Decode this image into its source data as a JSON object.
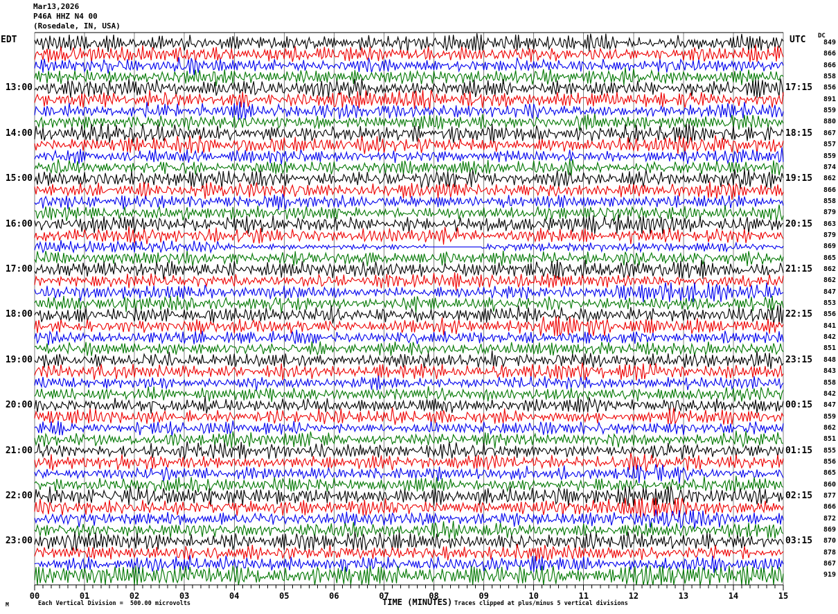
{
  "header": {
    "date_line": "Mar13,2026",
    "station_line": "P46A HHZ N4 00",
    "location_line": "(Rosedale, IN, USA)",
    "left_tz": "EDT",
    "right_tz": "UTC",
    "dc_label": "DC"
  },
  "footer": {
    "corner_mark": "M",
    "left_note": "Each Vertical Division =  500.00 microvolts",
    "axis_label": "TIME (MINUTES)",
    "right_note": "Traces clipped at plus/minus 5 vertical divisions"
  },
  "x_axis": {
    "ticks": [
      "00",
      "01",
      "02",
      "03",
      "04",
      "05",
      "06",
      "07",
      "08",
      "09",
      "10",
      "11",
      "12",
      "13",
      "14",
      "15"
    ],
    "minor_per_major": 5
  },
  "chart_data": {
    "type": "line",
    "title": "P46A HHZ N4 00 (Rosedale, IN, USA) heliplot seismogram Mar13,2026",
    "xlabel": "TIME (MINUTES)",
    "x_range": [
      0,
      15
    ],
    "minutes_per_row": 15,
    "rows": 48,
    "vertical_division_microvolts": 500.0,
    "clip_divisions": 5,
    "grid": true,
    "grid_color": "#808080",
    "trace_colors": {
      "black": "#000000",
      "red": "#ee0000",
      "blue": "#0000ee",
      "green": "#007700"
    },
    "traces": [
      {
        "edt": "",
        "utc": "",
        "color": "black",
        "dc": 849,
        "amp": 5.0
      },
      {
        "edt": "",
        "utc": "",
        "color": "red",
        "dc": 866,
        "amp": 5.0,
        "events": [
          [
            14.6,
            0.3,
            1.9
          ]
        ]
      },
      {
        "edt": "",
        "utc": "",
        "color": "blue",
        "dc": 866,
        "amp": 4.4,
        "events": [
          [
            9.7,
            0.15,
            1.9
          ]
        ]
      },
      {
        "edt": "",
        "utc": "",
        "color": "green",
        "dc": 858,
        "amp": 4.5
      },
      {
        "edt": "13:00",
        "utc": "17:15",
        "color": "black",
        "dc": 856,
        "amp": 5.4
      },
      {
        "edt": "",
        "utc": "",
        "color": "red",
        "dc": 891,
        "amp": 5.0,
        "events": [
          [
            6.1,
            0.12,
            2.7
          ],
          [
            7.98,
            0.07,
            2.2
          ]
        ]
      },
      {
        "edt": "",
        "utc": "",
        "color": "blue",
        "dc": 859,
        "amp": 4.4
      },
      {
        "edt": "",
        "utc": "",
        "color": "green",
        "dc": 880,
        "amp": 4.5
      },
      {
        "edt": "14:00",
        "utc": "18:15",
        "color": "black",
        "dc": 867,
        "amp": 5.6,
        "events": [
          [
            12.9,
            0.3,
            1.6
          ]
        ]
      },
      {
        "edt": "",
        "utc": "",
        "color": "red",
        "dc": 857,
        "amp": 5.0,
        "events": [
          [
            13.8,
            1.0,
            1.6
          ]
        ]
      },
      {
        "edt": "",
        "utc": "",
        "color": "blue",
        "dc": 859,
        "amp": 4.4
      },
      {
        "edt": "",
        "utc": "",
        "color": "green",
        "dc": 874,
        "amp": 4.5
      },
      {
        "edt": "15:00",
        "utc": "19:15",
        "color": "black",
        "dc": 862,
        "amp": 5.2,
        "events": [
          [
            14.2,
            0.4,
            1.6
          ]
        ]
      },
      {
        "edt": "",
        "utc": "",
        "color": "red",
        "dc": 866,
        "amp": 4.8
      },
      {
        "edt": "",
        "utc": "",
        "color": "blue",
        "dc": 858,
        "amp": 4.2
      },
      {
        "edt": "",
        "utc": "",
        "color": "green",
        "dc": 879,
        "amp": 4.5
      },
      {
        "edt": "16:00",
        "utc": "20:15",
        "color": "black",
        "dc": 863,
        "amp": 5.2
      },
      {
        "edt": "",
        "utc": "",
        "color": "red",
        "dc": 879,
        "amp": 4.8
      },
      {
        "edt": "",
        "utc": "",
        "color": "blue",
        "dc": 869,
        "amp": 4.2,
        "quiet": [
          [
            3.9,
            7.87,
            0.45
          ],
          [
            8.95,
            15,
            0.65
          ]
        ],
        "flat": [
          [
            7.87,
            8.95
          ]
        ]
      },
      {
        "edt": "",
        "utc": "",
        "color": "green",
        "dc": 865,
        "amp": 4.5
      },
      {
        "edt": "17:00",
        "utc": "21:15",
        "color": "black",
        "dc": 862,
        "amp": 5.2
      },
      {
        "edt": "",
        "utc": "",
        "color": "red",
        "dc": 862,
        "amp": 4.8
      },
      {
        "edt": "",
        "utc": "",
        "color": "blue",
        "dc": 847,
        "amp": 4.2,
        "events": [
          [
            13.2,
            1.2,
            1.9
          ]
        ]
      },
      {
        "edt": "",
        "utc": "",
        "color": "green",
        "dc": 853,
        "amp": 4.5
      },
      {
        "edt": "18:00",
        "utc": "22:15",
        "color": "black",
        "dc": 856,
        "amp": 5.2
      },
      {
        "edt": "",
        "utc": "",
        "color": "red",
        "dc": 841,
        "amp": 4.8,
        "events": [
          [
            10.4,
            0.3,
            2.1
          ],
          [
            11.38,
            0.15,
            1.8
          ]
        ]
      },
      {
        "edt": "",
        "utc": "",
        "color": "blue",
        "dc": 842,
        "amp": 4.2,
        "events": [
          [
            5.25,
            0.07,
            2.3
          ]
        ]
      },
      {
        "edt": "",
        "utc": "",
        "color": "green",
        "dc": 851,
        "amp": 4.5
      },
      {
        "edt": "19:00",
        "utc": "23:15",
        "color": "black",
        "dc": 848,
        "amp": 5.0
      },
      {
        "edt": "",
        "utc": "",
        "color": "red",
        "dc": 843,
        "amp": 4.8
      },
      {
        "edt": "",
        "utc": "",
        "color": "blue",
        "dc": 858,
        "amp": 4.2
      },
      {
        "edt": "",
        "utc": "",
        "color": "green",
        "dc": 842,
        "amp": 4.5
      },
      {
        "edt": "20:00",
        "utc": "00:15",
        "color": "black",
        "dc": 847,
        "amp": 5.0
      },
      {
        "edt": "",
        "utc": "",
        "color": "red",
        "dc": 859,
        "amp": 4.8
      },
      {
        "edt": "",
        "utc": "",
        "color": "blue",
        "dc": 862,
        "amp": 4.2
      },
      {
        "edt": "",
        "utc": "",
        "color": "green",
        "dc": 851,
        "amp": 4.5
      },
      {
        "edt": "21:00",
        "utc": "01:15",
        "color": "black",
        "dc": 855,
        "amp": 5.2
      },
      {
        "edt": "",
        "utc": "",
        "color": "red",
        "dc": 856,
        "amp": 4.8
      },
      {
        "edt": "",
        "utc": "",
        "color": "blue",
        "dc": 865,
        "amp": 4.4,
        "events": [
          [
            12.4,
            0.8,
            1.6
          ]
        ]
      },
      {
        "edt": "",
        "utc": "",
        "color": "green",
        "dc": 860,
        "amp": 4.5
      },
      {
        "edt": "22:00",
        "utc": "02:15",
        "color": "black",
        "dc": 877,
        "amp": 6.0
      },
      {
        "edt": "",
        "utc": "",
        "color": "red",
        "dc": 866,
        "amp": 5.0,
        "events": [
          [
            12.0,
            0.8,
            1.6
          ]
        ]
      },
      {
        "edt": "",
        "utc": "",
        "color": "blue",
        "dc": 872,
        "amp": 4.5,
        "events": [
          [
            12.7,
            0.8,
            1.8
          ]
        ]
      },
      {
        "edt": "",
        "utc": "",
        "color": "green",
        "dc": 869,
        "amp": 4.8
      },
      {
        "edt": "23:00",
        "utc": "03:15",
        "color": "black",
        "dc": 870,
        "amp": 5.4
      },
      {
        "edt": "",
        "utc": "",
        "color": "red",
        "dc": 878,
        "amp": 5.0
      },
      {
        "edt": "",
        "utc": "",
        "color": "blue",
        "dc": 867,
        "amp": 4.5
      },
      {
        "edt": "",
        "utc": "",
        "color": "green",
        "dc": 919,
        "amp": 6.5
      }
    ]
  }
}
